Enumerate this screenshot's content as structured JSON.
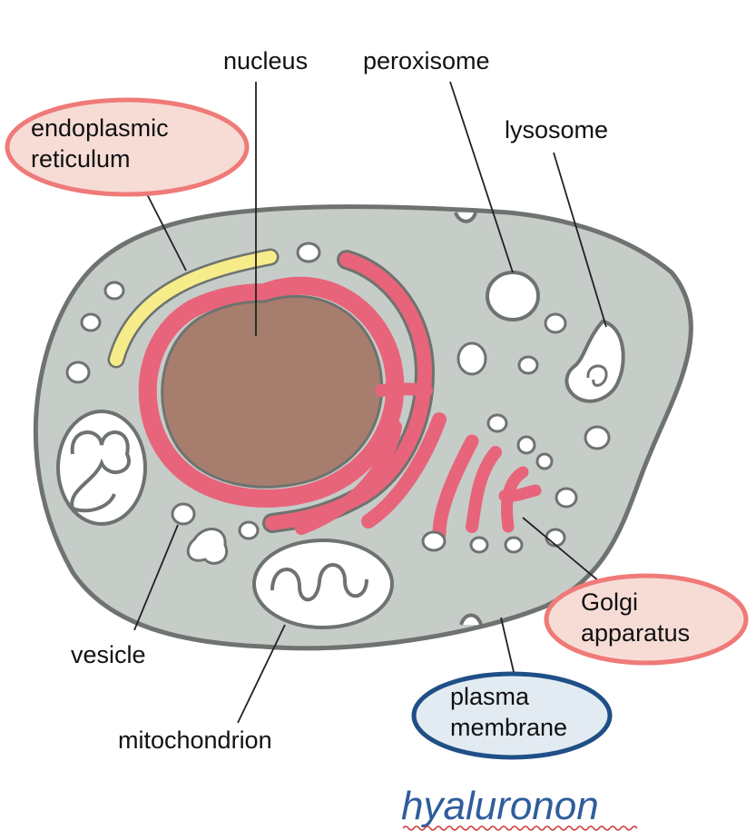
{
  "diagram": {
    "title": "hyaluronon",
    "labels": {
      "nucleus": "nucleus",
      "peroxisome": "peroxisome",
      "lysosome": "lysosome",
      "er_line1": "endoplasmic",
      "er_line2": "reticulum",
      "vesicle": "vesicle",
      "mitochondrion": "mitochondrion",
      "golgi_line1": "Golgi",
      "golgi_line2": "apparatus",
      "pm_line1": "plasma",
      "pm_line2": "membrane"
    },
    "colors": {
      "cytoplasm": "#c6ccc8",
      "membrane": "#6e736f",
      "nucleus": "#a77e6e",
      "er": "#e8647a",
      "smooth_er": "#f6ec8a",
      "highlight_fill": "#f7dcd6",
      "highlight_stroke": "#ef7a78",
      "pm_fill": "#e3ebf2",
      "pm_stroke": "#1f4f86",
      "title": "#2e5d9c"
    }
  }
}
